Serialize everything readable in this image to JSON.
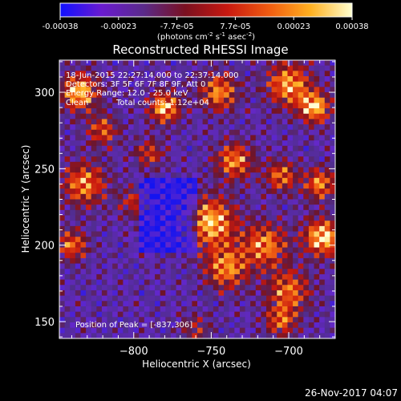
{
  "colorbar": {
    "ticks": [
      "-0.00038",
      "-0.00023",
      "-7.7e-05",
      "7.7e-05",
      "0.00023",
      "0.00038"
    ],
    "unit_main": "(photons cm",
    "unit_exp1": "-2",
    "unit_mid": " s",
    "unit_exp2": "-1",
    "unit_end": " asec",
    "unit_exp3": "-2",
    "unit_close": ")",
    "range": [
      -0.00038,
      0.00038
    ],
    "colors": [
      "#1010ff",
      "#6a1bd0",
      "#5a2a8a",
      "#7a1020",
      "#c81810",
      "#f05a10",
      "#ffb020",
      "#ffffd0"
    ]
  },
  "chart_data": {
    "type": "heatmap",
    "title": "Reconstructed RHESSI Image",
    "xlabel": "Heliocentric X (arcsec)",
    "ylabel": "Heliocentric Y (arcsec)",
    "xlim": [
      -848,
      -670
    ],
    "ylim": [
      139,
      321
    ],
    "xticks": [
      -800,
      -750,
      -700
    ],
    "xtick_labels": [
      "−800",
      "−750",
      "−700"
    ],
    "yticks": [
      150,
      200,
      250,
      300
    ],
    "ytick_labels": [
      "150",
      "200",
      "250",
      "300"
    ],
    "colormap": "blue-purple-red-yellow-white",
    "peak_position": [
      -837,
      306
    ],
    "annotations": {
      "time": "18-Jun-2015 22:27:14.000 to 22:37:14.000",
      "detectors": "Detectors: 3F 5F 6F 7F 8F 9F, Att 0",
      "energy": "Energy Range: 12.0 - 25.0 keV",
      "method": "Clean",
      "counts": "Total counts: 1.12e+04",
      "peak": "Position of Peak = [-837,306]"
    }
  },
  "footer": {
    "date": "26-Nov-2017 04:07"
  }
}
